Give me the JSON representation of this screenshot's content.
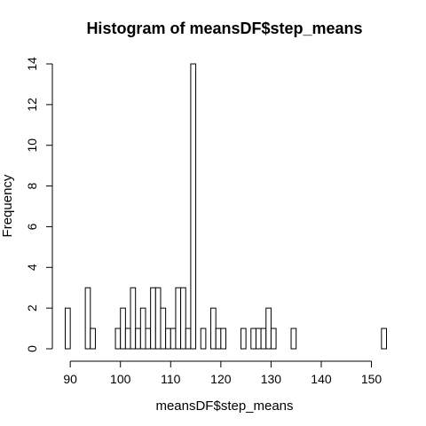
{
  "chart_data": {
    "type": "bar",
    "title": "Histogram of meansDF$step_means",
    "xlabel": "meansDF$step_means",
    "ylabel": "Frequency",
    "bin_width": 1,
    "xlim": [
      89,
      153
    ],
    "ylim": [
      0,
      14
    ],
    "x_ticks": [
      90,
      100,
      110,
      120,
      130,
      140,
      150
    ],
    "y_ticks": [
      0,
      2,
      4,
      6,
      8,
      10,
      12,
      14
    ],
    "bins": [
      {
        "start": 89,
        "count": 2
      },
      {
        "start": 93,
        "count": 3
      },
      {
        "start": 94,
        "count": 1
      },
      {
        "start": 99,
        "count": 1
      },
      {
        "start": 100,
        "count": 2
      },
      {
        "start": 101,
        "count": 1
      },
      {
        "start": 102,
        "count": 3
      },
      {
        "start": 103,
        "count": 1
      },
      {
        "start": 104,
        "count": 2
      },
      {
        "start": 105,
        "count": 1
      },
      {
        "start": 106,
        "count": 3
      },
      {
        "start": 107,
        "count": 3
      },
      {
        "start": 108,
        "count": 2
      },
      {
        "start": 109,
        "count": 1
      },
      {
        "start": 110,
        "count": 1
      },
      {
        "start": 111,
        "count": 3
      },
      {
        "start": 112,
        "count": 3
      },
      {
        "start": 113,
        "count": 1
      },
      {
        "start": 114,
        "count": 14
      },
      {
        "start": 116,
        "count": 1
      },
      {
        "start": 118,
        "count": 2
      },
      {
        "start": 119,
        "count": 1
      },
      {
        "start": 120,
        "count": 1
      },
      {
        "start": 124,
        "count": 1
      },
      {
        "start": 126,
        "count": 1
      },
      {
        "start": 127,
        "count": 1
      },
      {
        "start": 128,
        "count": 1
      },
      {
        "start": 129,
        "count": 2
      },
      {
        "start": 130,
        "count": 1
      },
      {
        "start": 134,
        "count": 1
      },
      {
        "start": 152,
        "count": 1
      }
    ],
    "grid": false,
    "colors": {
      "bar_fill": "#ffffff",
      "bar_stroke": "#000000"
    }
  }
}
